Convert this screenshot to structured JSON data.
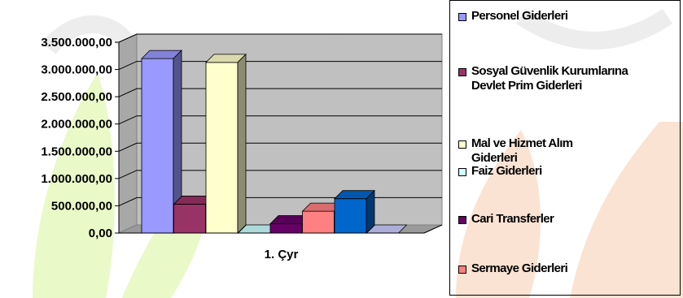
{
  "chart_data": {
    "type": "bar",
    "categories": [
      "1. Çyr"
    ],
    "series": [
      {
        "name": "Personel Giderleri",
        "values": [
          3200000
        ],
        "color": "#9999FF"
      },
      {
        "name": "Sosyal Güvenlik Kurumlarına\nDevlet Prim Giderleri",
        "values": [
          530000
        ],
        "color": "#993366"
      },
      {
        "name": "Mal ve Hizmet Alım\nGiderleri",
        "values": [
          3130000
        ],
        "color": "#FFFFCC"
      },
      {
        "name": "Faiz Giderleri",
        "values": [
          0
        ],
        "color": "#CCFFFF"
      },
      {
        "name": "Cari Transferler",
        "values": [
          170000
        ],
        "color": "#660066"
      },
      {
        "name": "Sermaye Giderleri",
        "values": [
          400000
        ],
        "color": "#FF8080"
      },
      {
        "name": "",
        "values": [
          630000
        ],
        "color": "#0066CC"
      },
      {
        "name": "",
        "values": [
          0
        ],
        "color": "#CCCCFF"
      }
    ],
    "y_ticks": [
      "0,00",
      "500.000,00",
      "1.000.000,00",
      "1.500.000,00",
      "2.000.000,00",
      "2.500.000,00",
      "3.000.000,00",
      "3.500.000,00"
    ],
    "ylim": [
      0,
      3500000
    ],
    "grid": true,
    "legend_position": "right",
    "plot_wall_color": "#C0C0C0"
  }
}
